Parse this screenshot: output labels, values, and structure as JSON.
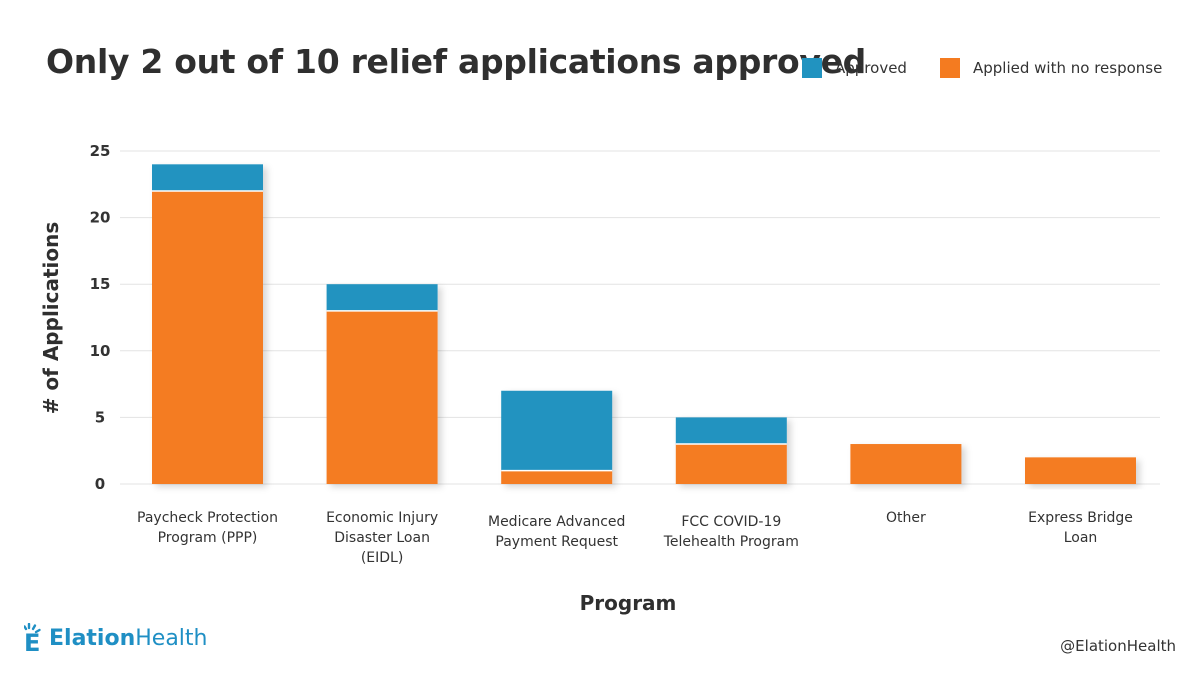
{
  "colors": {
    "approved": "#2193c0",
    "pending": "#f47b20",
    "grid": "#e3e3e3"
  },
  "legend": [
    {
      "key": "approved",
      "label": "Approved"
    },
    {
      "key": "pending",
      "label": "Applied with no response"
    }
  ],
  "chart_data": {
    "type": "bar",
    "stacked": true,
    "title": "Only 2 out of 10 relief applications approved",
    "xlabel": "Program",
    "ylabel": "# of Applications",
    "ylim": [
      0,
      25
    ],
    "yticks": [
      0,
      5,
      10,
      15,
      20,
      25
    ],
    "grid": true,
    "legend_position": "top-right",
    "categories": [
      [
        "Paycheck Protection",
        "Program (PPP)"
      ],
      [
        "Economic Injury",
        "Disaster Loan",
        "(EIDL)"
      ],
      [
        "Medicare Advanced",
        "Payment Request"
      ],
      [
        "FCC COVID-19",
        "Telehealth Program"
      ],
      [
        "Other"
      ],
      [
        "Express Bridge",
        "Loan"
      ]
    ],
    "series": [
      {
        "name": "Applied with no response",
        "key": "pending",
        "values": [
          22,
          13,
          1,
          3,
          3,
          2
        ]
      },
      {
        "name": "Approved",
        "key": "approved",
        "values": [
          2,
          2,
          6,
          2,
          0,
          0
        ]
      }
    ]
  },
  "branding": {
    "logo_bold": "Elation",
    "logo_regular": "Health",
    "handle": "@ElationHealth"
  }
}
